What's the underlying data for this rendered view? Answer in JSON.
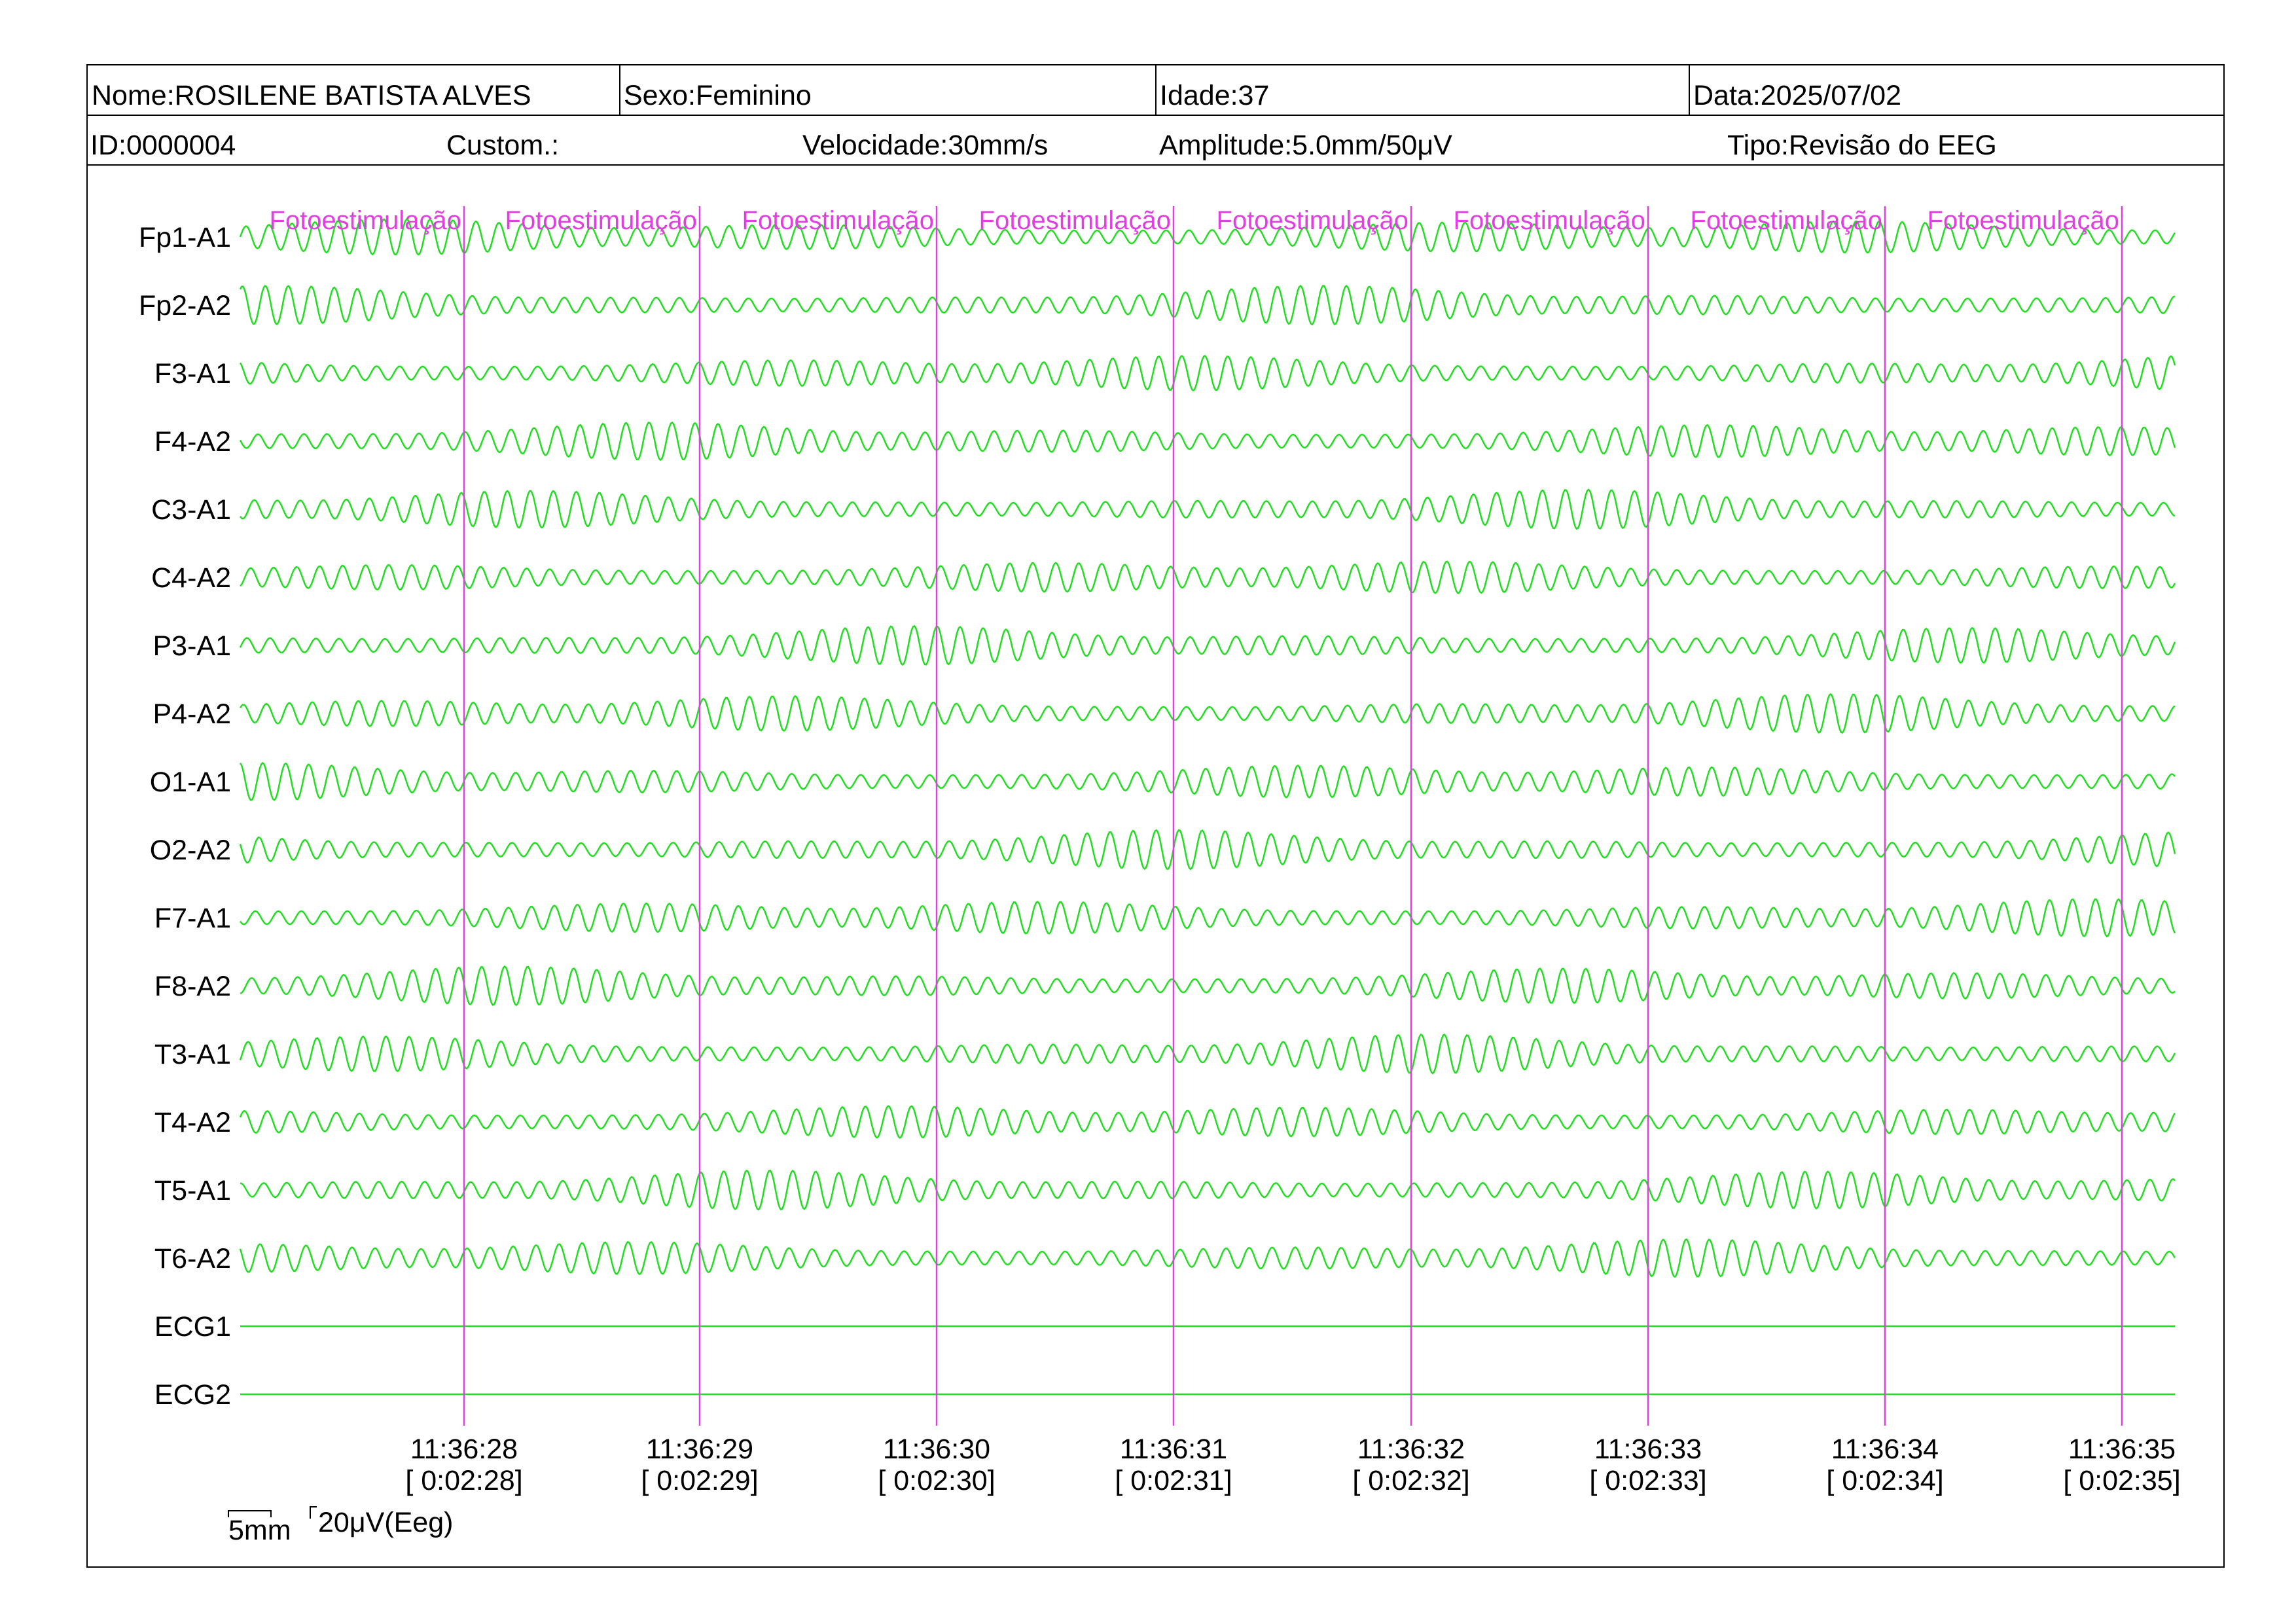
{
  "header": {
    "nome": "Nome:ROSILENE BATISTA ALVES",
    "sexo": "Sexo:Feminino",
    "idade": "Idade:37",
    "data": "Data:2025/07/02",
    "id": "ID:0000004",
    "custom": "Custom.:",
    "velocidade": "Velocidade:30mm/s",
    "amplitude": "Amplitude:5.0mm/50μV",
    "tipo": "Tipo:Revisão do EEG"
  },
  "channels": [
    "Fp1-A1",
    "Fp2-A2",
    "F3-A1",
    "F4-A2",
    "C3-A1",
    "C4-A2",
    "P3-A1",
    "P4-A2",
    "O1-A1",
    "O2-A2",
    "F7-A1",
    "F8-A2",
    "T3-A1",
    "T4-A2",
    "T5-A1",
    "T6-A2",
    "ECG1",
    "ECG2"
  ],
  "events": [
    "Fotoestimulação",
    "Fotoestimulação",
    "Fotoestimulação",
    "Fotoestimulação",
    "Fotoestimulação",
    "Fotoestimulação",
    "Fotoestimulação",
    "Fotoestimulação"
  ],
  "times": [
    {
      "time": "11:36:28",
      "offset": "[ 0:02:28]"
    },
    {
      "time": "11:36:29",
      "offset": "[ 0:02:29]"
    },
    {
      "time": "11:36:30",
      "offset": "[ 0:02:30]"
    },
    {
      "time": "11:36:31",
      "offset": "[ 0:02:31]"
    },
    {
      "time": "11:36:32",
      "offset": "[ 0:02:32]"
    },
    {
      "time": "11:36:33",
      "offset": "[ 0:02:33]"
    },
    {
      "time": "11:36:34",
      "offset": "[ 0:02:34]"
    },
    {
      "time": "11:36:35",
      "offset": "[ 0:02:35]"
    }
  ],
  "scale": {
    "time_label": "5mm",
    "amp_label": "20μV(Eeg)"
  }
}
